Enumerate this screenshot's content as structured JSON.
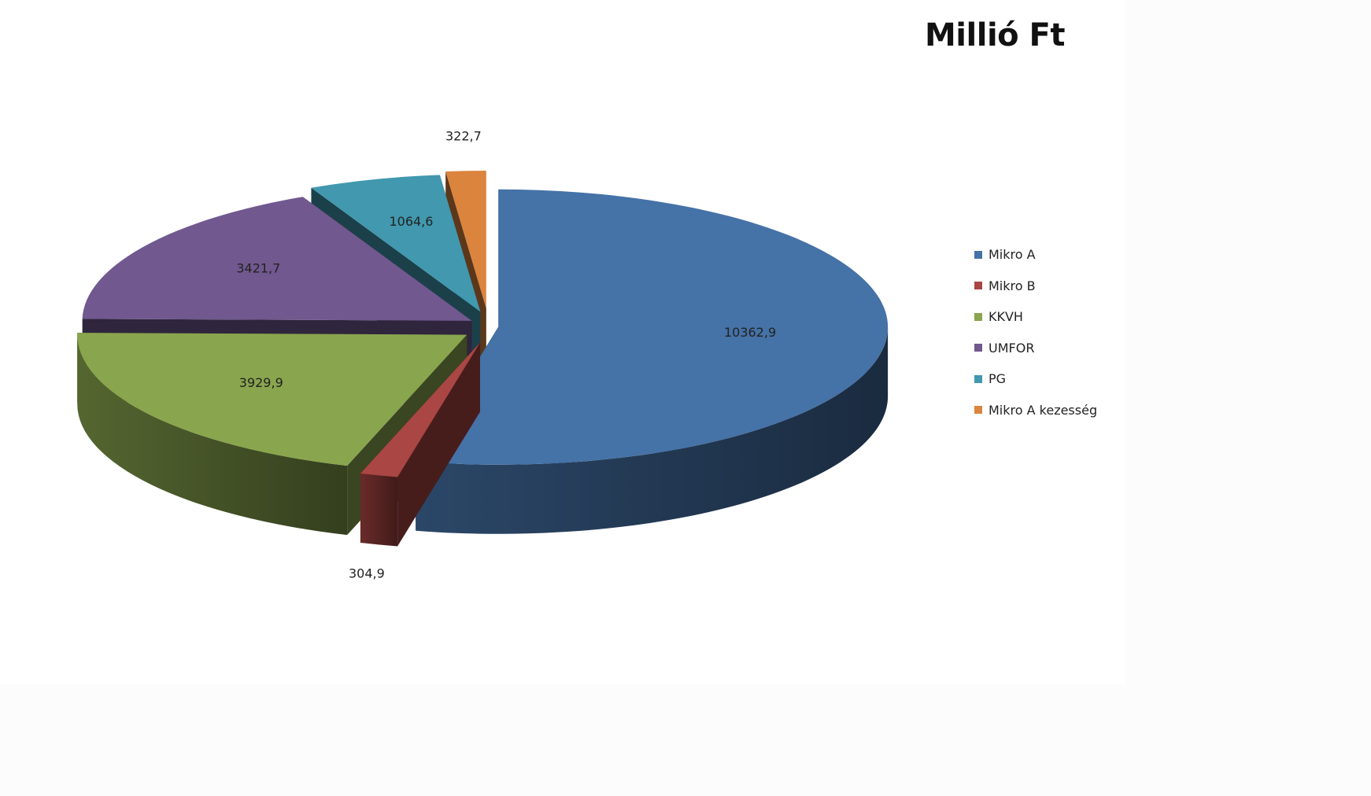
{
  "chart_data": {
    "type": "pie",
    "title": "Millió Ft",
    "categories": [
      "Mikro A",
      "Mikro B",
      "KKVH",
      "UMFOR",
      "PG",
      "Mikro A kezesség"
    ],
    "values": [
      10362.9,
      304.9,
      3929.9,
      3421.7,
      1064.6,
      322.7
    ],
    "value_labels": [
      "10362,9",
      "304,9",
      "3929,9",
      "3421,7",
      "1064,6",
      "322,7"
    ],
    "colors": [
      "#4572a7",
      "#aa4643",
      "#89a54e",
      "#71588f",
      "#4198af",
      "#db843d"
    ],
    "legend_position": "right",
    "style": "3d-exploded"
  }
}
